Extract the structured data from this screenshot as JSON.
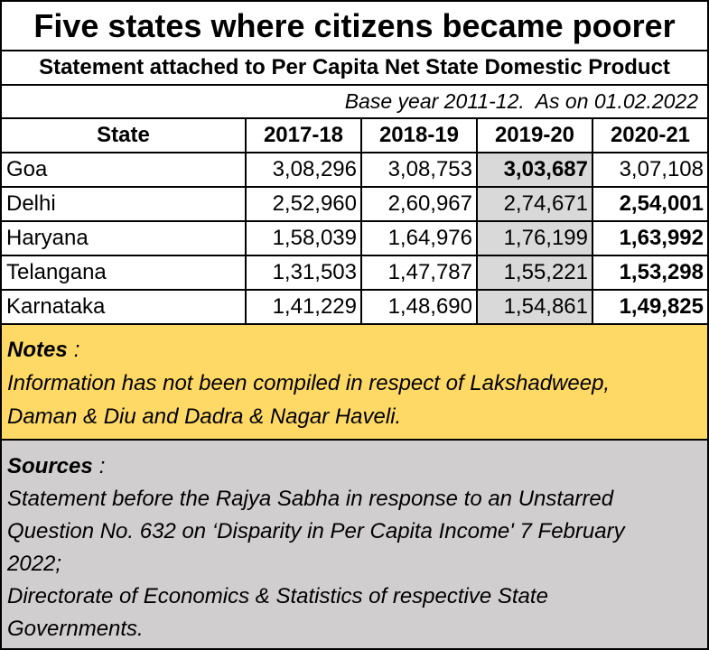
{
  "chart_data": {
    "type": "table",
    "title": "Five states where citizens became poorer",
    "subtitle": "Statement attached to Per Capita Net State Domestic Product",
    "annotation": "Base year 2011-12.  As on 01.02.2022",
    "columns": [
      "State",
      "2017-18",
      "2018-19",
      "2019-20",
      "2020-21"
    ],
    "rows": [
      [
        "Goa",
        "3,08,296",
        "3,08,753",
        "3,03,687",
        "3,07,108"
      ],
      [
        "Delhi",
        "2,52,960",
        "2,60,967",
        "2,74,671",
        "2,54,001"
      ],
      [
        "Haryana",
        "1,58,039",
        "1,64,976",
        "1,76,199",
        "1,63,992"
      ],
      [
        "Telangana",
        "1,31,503",
        "1,47,787",
        "1,55,221",
        "1,53,298"
      ],
      [
        "Karnataka",
        "1,41,229",
        "1,48,690",
        "1,54,861",
        "1,49,825"
      ]
    ]
  },
  "notes": {
    "heading": "Notes",
    "heading_suffix": ":",
    "lines": [
      "Information has not been compiled in respect of Lakshadweep,",
      "Daman & Diu and Dadra & Nagar Haveli."
    ]
  },
  "sources": {
    "heading": "Sources",
    "heading_suffix": ":",
    "lines": [
      "Statement before the Rajya Sabha in response to an Unstarred",
      "Question No. 632 on ‘Disparity in Per Capita Income' 7 February",
      "2022;",
      "Directorate of Economics & Statistics of respective State",
      "Governments."
    ]
  },
  "colors": {
    "notes_background": "#ffd966",
    "sources_background": "#d0cece",
    "highlight_column": "#d9d9d9"
  }
}
